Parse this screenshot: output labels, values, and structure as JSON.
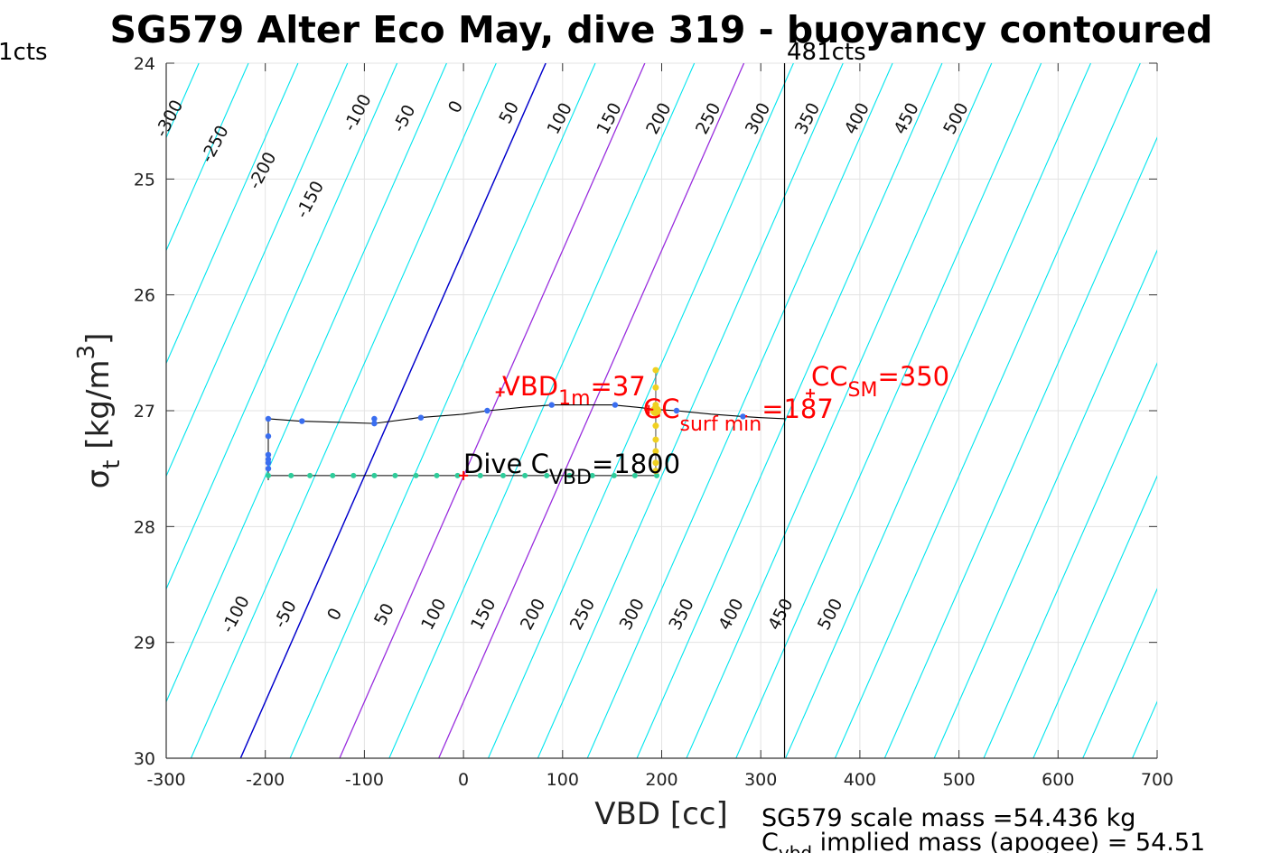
{
  "chart_data": {
    "type": "line",
    "title": "SG579 Alter Eco May, dive 319 - buoyancy contoured",
    "xlabel": "VBD [cc]",
    "ylabel_main": "σ",
    "ylabel_sub": "t",
    "ylabel_unit": "[kg/m",
    "ylabel_sup": "3",
    "ylabel_close": "]",
    "xlim": [
      -300,
      700
    ],
    "ylim": [
      24,
      30
    ],
    "y_reversed": true,
    "grid": true,
    "x_ticks": [
      "-300",
      "-200",
      "-100",
      "0",
      "100",
      "200",
      "300",
      "400",
      "500",
      "600",
      "700"
    ],
    "y_ticks": [
      "24",
      "25",
      "26",
      "27",
      "28",
      "29",
      "30"
    ],
    "colors": {
      "contour": "#00e5ee",
      "zero_contour": "#0000cc",
      "cc_contour": "#aa22dd",
      "profile_line": "#000000",
      "dive_points": "#3a6ef0",
      "climb_points": "#2ecc9a",
      "surface_points": "#f0d020",
      "annotation": "#ff0000"
    },
    "top_marker_left": "1cts",
    "top_marker_right": "481cts",
    "vertical_marker_x": 324,
    "contours": {
      "upper_labels": [
        "-300",
        "-250",
        "-200",
        "-150",
        "-100",
        "-50",
        "0",
        "50",
        "100",
        "150",
        "200",
        "250",
        "300",
        "350",
        "400",
        "450",
        "500"
      ],
      "lower_labels": [
        "-100",
        "-50",
        "0",
        "50",
        "100",
        "150",
        "200",
        "250",
        "300",
        "350",
        "400",
        "450",
        "500"
      ],
      "zero_line": [
        [
          -225,
          30
        ],
        [
          83,
          24
        ]
      ],
      "cc_lines": [
        [
          [
            -125,
            30
          ],
          [
            183,
            24
          ]
        ],
        [
          [
            -25,
            30
          ],
          [
            283,
            24
          ]
        ]
      ]
    },
    "profile_line": [
      [
        -197,
        27.07
      ],
      [
        -165,
        27.09
      ],
      [
        -90,
        27.11
      ],
      [
        -45,
        27.06
      ],
      [
        0,
        27.03
      ],
      [
        25,
        27.0
      ],
      [
        60,
        26.97
      ],
      [
        90,
        26.95
      ],
      [
        120,
        26.95
      ],
      [
        150,
        26.95
      ],
      [
        175,
        26.97
      ],
      [
        195,
        26.99
      ],
      [
        215,
        27.0
      ],
      [
        250,
        27.03
      ],
      [
        282,
        27.05
      ],
      [
        300,
        27.06
      ],
      [
        325,
        27.07
      ]
    ],
    "dive_points": [
      [
        -197,
        27.07
      ],
      [
        -163,
        27.09
      ],
      [
        -90,
        27.11
      ],
      [
        -90,
        27.07
      ],
      [
        -43,
        27.06
      ],
      [
        24,
        27.0
      ],
      [
        89,
        26.95
      ],
      [
        153,
        26.95
      ],
      [
        215,
        27.0
      ],
      [
        282,
        27.05
      ],
      [
        -197,
        27.22
      ],
      [
        -197,
        27.38
      ],
      [
        -197,
        27.45
      ],
      [
        -197,
        27.5
      ],
      [
        -197,
        27.42
      ]
    ],
    "climb_line": [
      [
        -197,
        27.56
      ],
      [
        0,
        27.56
      ],
      [
        195,
        27.56
      ]
    ],
    "climb_points": [
      [
        -197,
        27.56
      ],
      [
        -174,
        27.56
      ],
      [
        -155,
        27.56
      ],
      [
        -132,
        27.56
      ],
      [
        -111,
        27.56
      ],
      [
        -90,
        27.56
      ],
      [
        -69,
        27.56
      ],
      [
        -48,
        27.56
      ],
      [
        -27,
        27.56
      ],
      [
        -6,
        27.56
      ],
      [
        17,
        27.56
      ],
      [
        40,
        27.56
      ],
      [
        62,
        27.56
      ],
      [
        84,
        27.56
      ],
      [
        107,
        27.56
      ],
      [
        130,
        27.56
      ],
      [
        152,
        27.56
      ],
      [
        173,
        27.56
      ],
      [
        195,
        27.56
      ]
    ],
    "surface_points": [
      [
        194,
        26.65
      ],
      [
        194,
        26.8
      ],
      [
        194,
        26.95
      ],
      [
        194,
        27.0
      ],
      [
        194,
        27.13
      ],
      [
        194,
        27.25
      ],
      [
        194,
        27.35
      ],
      [
        194,
        27.45
      ],
      [
        194,
        27.52
      ]
    ],
    "markers": [
      {
        "label": "VBD_1m",
        "x": 37,
        "y": 26.84
      },
      {
        "label": "CC_surf_min",
        "x": 187,
        "y": 26.99
      },
      {
        "label": "CC_SM",
        "x": 350,
        "y": 26.85
      },
      {
        "label": "Dive C_VBD",
        "x": 0,
        "y": 27.56
      }
    ],
    "annotations": {
      "vbd_1m_main": "VBD",
      "vbd_1m_sub": "1m",
      "vbd_1m_val": "=37",
      "cc_surf_main": "CC",
      "cc_surf_sub": "surf min",
      "cc_surf_val": "=187",
      "cc_sm_main": "CC",
      "cc_sm_sub": "SM",
      "cc_sm_val": "=350",
      "dive_cvbd_main": "Dive C",
      "dive_cvbd_sub": "VBD",
      "dive_cvbd_val": "=1800"
    },
    "footer": {
      "line1": "SG579 scale mass =54.436 kg",
      "line2_main": "C",
      "line2_sub": "vbd",
      "line2_rest": " implied mass (apogee) = 54.51"
    }
  }
}
